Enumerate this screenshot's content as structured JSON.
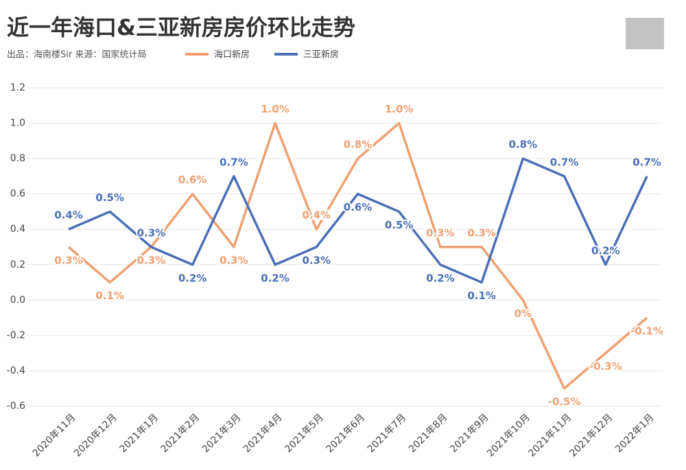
{
  "chart_data": {
    "type": "line",
    "title": "近一年海口&三亚新房房价环比走势",
    "subtitle": "出品：海南楼Sir  来源：国家统计局",
    "categories": [
      "2020年11月",
      "2020年12月",
      "2021年1月",
      "2021年2月",
      "2021年3月",
      "2021年4月",
      "2021年5月",
      "2021年6月",
      "2021年7月",
      "2021年8月",
      "2021年9月",
      "2021年10月",
      "2021年11月",
      "2021年12月",
      "2022年1月"
    ],
    "series": [
      {
        "name": "海口新房",
        "color": "#f0a070",
        "values": [
          0.3,
          0.1,
          0.3,
          0.6,
          0.3,
          1.0,
          0.4,
          0.8,
          1.0,
          0.3,
          0.3,
          0,
          -0.5,
          -0.3,
          -0.1
        ],
        "value_labels": [
          "0.3%",
          "0.1%",
          "0.3%",
          "0.6%",
          "0.3%",
          "1.0%",
          "0.4%",
          "0.8%",
          "1.0%",
          "0.3%",
          "0.3%",
          "0%",
          "-0.5%",
          "-0.3%",
          "-0.1%"
        ]
      },
      {
        "name": "三亚新房",
        "color": "#4a6fb5",
        "values": [
          0.4,
          0.5,
          0.3,
          0.2,
          0.7,
          0.2,
          0.3,
          0.6,
          0.5,
          0.2,
          0.1,
          0.8,
          0.7,
          0.2,
          0.7
        ],
        "value_labels": [
          "0.4%",
          "0.5%",
          "0.3%",
          "0.2%",
          "0.7%",
          "0.2%",
          "0.3%",
          "0.6%",
          "0.5%",
          "0.2%",
          "0.1%",
          "0.8%",
          "0.7%",
          "0.2%",
          "0.7%"
        ]
      }
    ],
    "ylim": [
      -0.6,
      1.2
    ],
    "yticks": [
      -0.6,
      -0.4,
      -0.2,
      {
        "value": 0,
        "label": "0.0"
      },
      0.2,
      0.4,
      0.6,
      0.8,
      {
        "value": 1,
        "label": "1.0"
      },
      1.2
    ],
    "grid": true
  }
}
